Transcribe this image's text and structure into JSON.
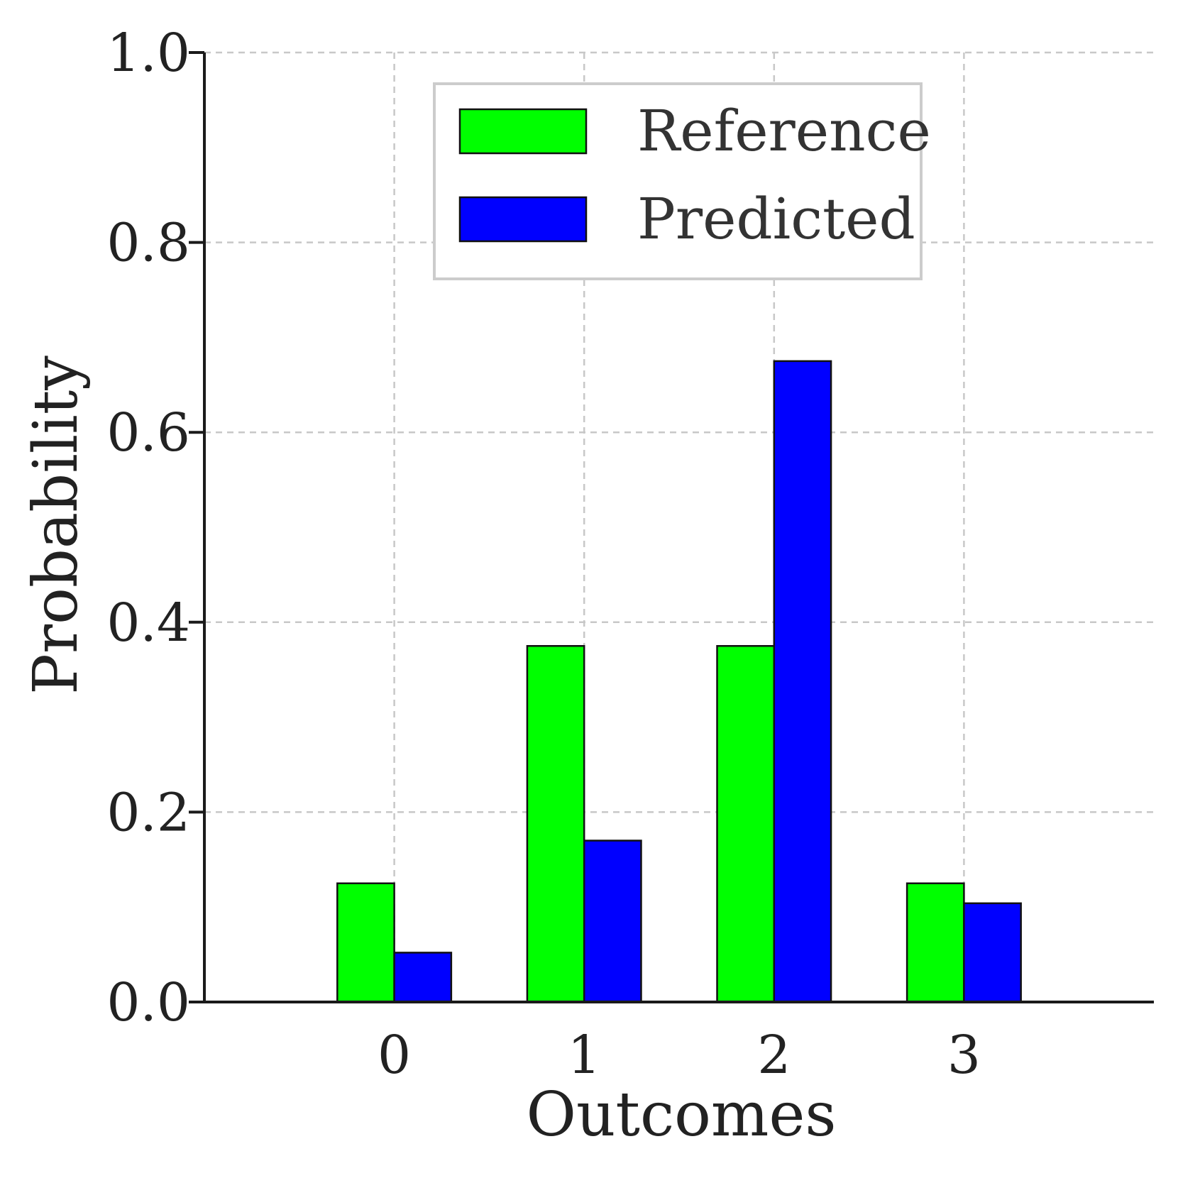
{
  "chart_data": {
    "type": "bar",
    "categories": [
      "0",
      "1",
      "2",
      "3"
    ],
    "series": [
      {
        "name": "Reference",
        "color": "#00ff00",
        "values": [
          0.125,
          0.375,
          0.375,
          0.125
        ]
      },
      {
        "name": "Predicted",
        "color": "#0000ff",
        "values": [
          0.052,
          0.17,
          0.675,
          0.104
        ]
      }
    ],
    "title": "",
    "xlabel": "Outcomes",
    "ylabel": "Probability",
    "ylim": [
      0,
      1.0
    ],
    "yticks": [
      "0.0",
      "0.2",
      "0.4",
      "0.6",
      "0.8",
      "1.0"
    ],
    "xlim": [
      -1,
      4
    ],
    "grid": true,
    "legend_position": "top-center"
  }
}
